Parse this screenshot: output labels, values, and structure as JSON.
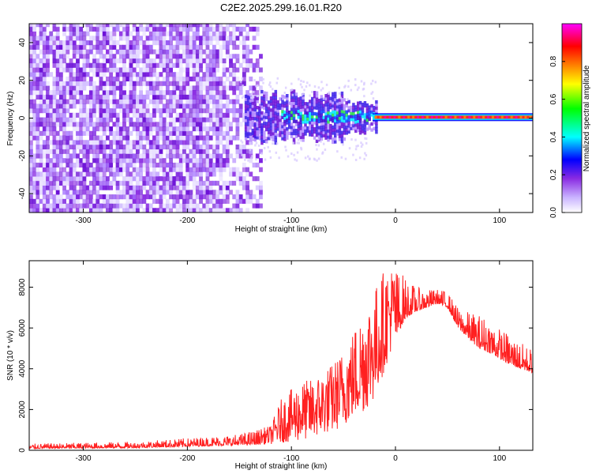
{
  "chart_data": [
    {
      "type": "heatmap",
      "title": "C2E2.2025.299.16.01.R20",
      "xlabel": "Height of straight line (km)",
      "ylabel": "Frequency (Hz)",
      "xlim": [
        -352,
        132
      ],
      "ylim": [
        -50,
        50
      ],
      "xticks": [
        -300,
        -200,
        -100,
        0,
        100
      ],
      "yticks": [
        -40,
        -20,
        0,
        20,
        40
      ],
      "colorbar": {
        "label": "Normalized spectral amplitude",
        "range": [
          0,
          1
        ],
        "ticks": [
          0.0,
          0.2,
          0.4,
          0.6,
          0.8
        ],
        "colormap": [
          "#ffffff",
          "#c9b3ff",
          "#8a2be2",
          "#0000ff",
          "#00ffff",
          "#00ff00",
          "#ffff00",
          "#ff8000",
          "#ff0000",
          "#ff00ff"
        ]
      },
      "regions": [
        {
          "name": "noise",
          "x_range": [
            -352,
            -135
          ],
          "freq_range": [
            -50,
            50
          ],
          "amplitude": 0.1
        },
        {
          "name": "transition",
          "x_range": [
            -135,
            -20
          ],
          "freq_range": [
            -12,
            12
          ],
          "amplitude": 0.3
        },
        {
          "name": "carrier",
          "x_range": [
            -20,
            132
          ],
          "freq_center": 0.5,
          "amplitude": 0.95
        }
      ]
    },
    {
      "type": "line",
      "xlabel": "Height of straight line (km)",
      "ylabel": "SNR (10 * v/v)",
      "xlim": [
        -352,
        132
      ],
      "ylim": [
        0,
        9300
      ],
      "xticks": [
        -300,
        -200,
        -100,
        0,
        100
      ],
      "yticks": [
        0,
        2000,
        4000,
        6000,
        8000
      ],
      "color": "#ff2020",
      "envelope": {
        "x": [
          -352,
          -300,
          -250,
          -200,
          -150,
          -120,
          -110,
          -100,
          -90,
          -80,
          -70,
          -60,
          -50,
          -40,
          -30,
          -20,
          -10,
          0,
          10,
          20,
          30,
          40,
          50,
          60,
          70,
          80,
          90,
          100,
          110,
          120,
          132
        ],
        "low": [
          80,
          100,
          120,
          180,
          250,
          300,
          380,
          400,
          500,
          600,
          800,
          900,
          1200,
          1600,
          1900,
          2500,
          4000,
          5500,
          6500,
          6800,
          7000,
          7200,
          7000,
          6000,
          5500,
          5000,
          4800,
          4500,
          4200,
          4000,
          3800
        ],
        "high": [
          320,
          380,
          420,
          600,
          800,
          1200,
          2500,
          3000,
          3400,
          3500,
          3900,
          4300,
          5000,
          6000,
          7200,
          8000,
          9000,
          9100,
          8500,
          8000,
          7900,
          7900,
          7800,
          7000,
          6800,
          6700,
          6500,
          6000,
          5700,
          5300,
          5000
        ]
      }
    }
  ]
}
